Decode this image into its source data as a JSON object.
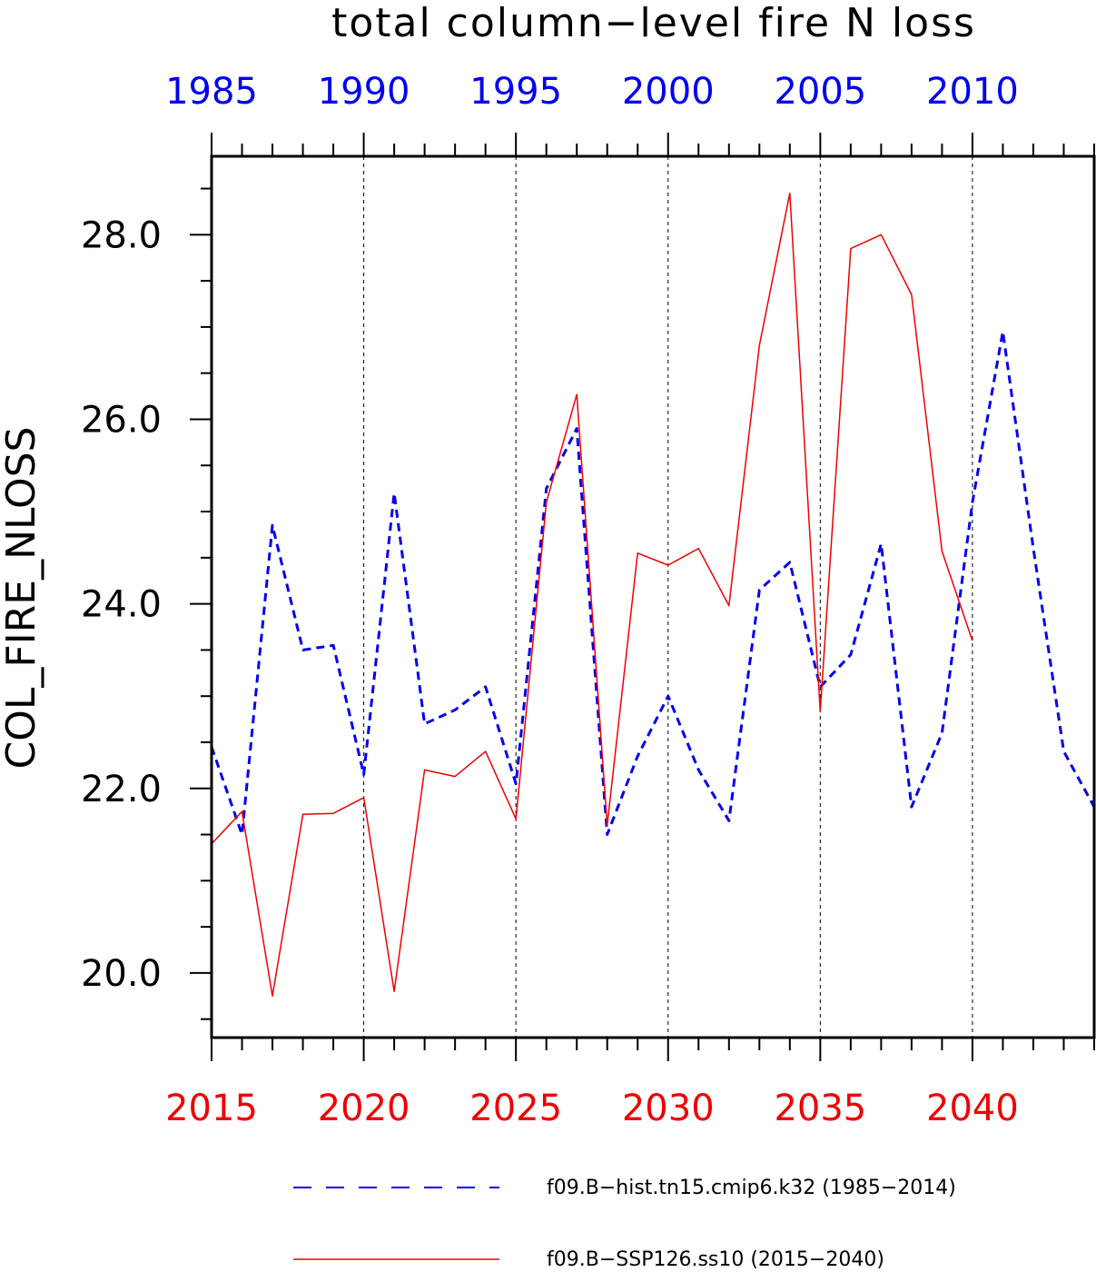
{
  "chart_data": {
    "type": "line",
    "title": "total column−level fire N loss",
    "ylabel": "COL_FIRE_NLOSS",
    "ylim": [
      19.3,
      28.85
    ],
    "yticks": [
      "20.0",
      "22.0",
      "24.0",
      "26.0",
      "28.0"
    ],
    "xlim_bottom": [
      2015,
      2044
    ],
    "xticks_bottom": [
      "2015",
      "2020",
      "2025",
      "2030",
      "2035",
      "2040"
    ],
    "xlim_top": [
      1985,
      2014
    ],
    "xticks_top": [
      "1985",
      "1990",
      "1995",
      "2000",
      "2005",
      "2010"
    ],
    "grid": "vertical-dashed",
    "legend_position": "bottom",
    "series": [
      {
        "name": "f09.B−hist.tn15.cmip6.k32 (1985−2014)",
        "axis": "top",
        "color": "#0000ee",
        "style": "dashed",
        "x": [
          1985,
          1986,
          1987,
          1988,
          1989,
          1990,
          1991,
          1992,
          1993,
          1994,
          1995,
          1996,
          1997,
          1998,
          1999,
          2000,
          2001,
          2002,
          2003,
          2004,
          2005,
          2006,
          2007,
          2008,
          2009,
          2010,
          2011,
          2012,
          2013,
          2014
        ],
        "values": [
          22.45,
          21.5,
          24.85,
          23.5,
          23.55,
          22.15,
          25.2,
          22.7,
          22.85,
          23.1,
          22.05,
          25.25,
          25.9,
          21.5,
          22.35,
          23.0,
          22.2,
          21.65,
          24.15,
          24.45,
          23.1,
          23.45,
          24.65,
          21.8,
          22.6,
          25.1,
          26.95,
          24.6,
          22.4,
          21.8
        ]
      },
      {
        "name": "f09.B−SSP126.ss10 (2015−2040)",
        "axis": "bottom",
        "color": "#ee0000",
        "style": "solid",
        "x": [
          2015,
          2016,
          2017,
          2018,
          2019,
          2020,
          2021,
          2022,
          2023,
          2024,
          2025,
          2026,
          2027,
          2028,
          2029,
          2030,
          2031,
          2032,
          2033,
          2034,
          2035,
          2036,
          2037,
          2038,
          2039,
          2040
        ],
        "values": [
          21.4,
          21.75,
          19.75,
          21.72,
          21.73,
          21.9,
          19.8,
          22.2,
          22.13,
          22.4,
          21.67,
          25.1,
          26.27,
          21.6,
          24.55,
          24.42,
          24.6,
          23.98,
          26.8,
          28.45,
          22.83,
          27.85,
          28.0,
          27.35,
          24.57,
          23.6
        ]
      }
    ]
  }
}
